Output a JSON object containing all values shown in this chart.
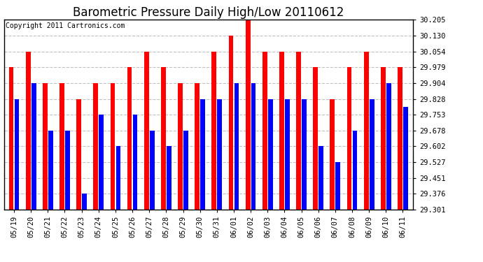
{
  "title": "Barometric Pressure Daily High/Low 20110612",
  "copyright": "Copyright 2011 Cartronics.com",
  "dates": [
    "05/19",
    "05/20",
    "05/21",
    "05/22",
    "05/23",
    "05/24",
    "05/25",
    "05/26",
    "05/27",
    "05/28",
    "05/29",
    "05/30",
    "05/31",
    "06/01",
    "06/02",
    "06/03",
    "06/04",
    "06/05",
    "06/06",
    "06/07",
    "06/08",
    "06/09",
    "06/10",
    "06/11"
  ],
  "highs": [
    29.979,
    30.054,
    29.904,
    29.904,
    29.828,
    29.904,
    29.904,
    29.979,
    30.054,
    29.979,
    29.904,
    29.904,
    30.054,
    30.13,
    30.205,
    30.054,
    30.054,
    30.054,
    29.979,
    29.828,
    29.979,
    30.054,
    29.979,
    29.979
  ],
  "lows": [
    29.828,
    29.904,
    29.678,
    29.678,
    29.376,
    29.753,
    29.602,
    29.753,
    29.678,
    29.602,
    29.678,
    29.828,
    29.828,
    29.904,
    29.904,
    29.828,
    29.828,
    29.828,
    29.602,
    29.527,
    29.678,
    29.828,
    29.904,
    29.79
  ],
  "ymin": 29.301,
  "ymax": 30.205,
  "yticks": [
    29.301,
    29.376,
    29.451,
    29.527,
    29.602,
    29.678,
    29.753,
    29.828,
    29.904,
    29.979,
    30.054,
    30.13,
    30.205
  ],
  "high_color": "#ff0000",
  "low_color": "#0000ff",
  "bg_color": "#ffffff",
  "grid_color": "#c0c0c0",
  "title_fontsize": 12,
  "copyright_fontsize": 7,
  "tick_fontsize": 7.5,
  "bar_width": 0.28,
  "bar_gap": 0.05
}
